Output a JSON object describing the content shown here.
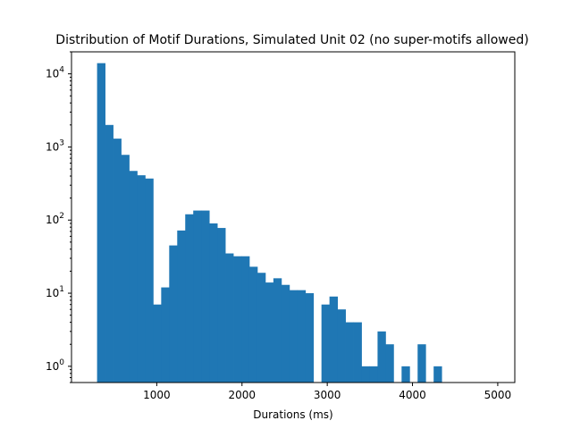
{
  "chart_data": {
    "type": "bar",
    "title": "Distribution of Motif Durations, Simulated Unit 02 (no super-motifs allowed)",
    "xlabel": "Durations (ms)",
    "ylabel": "",
    "xlim": [
      0,
      5200
    ],
    "ylim": [
      0.6,
      20000
    ],
    "yscale": "log",
    "grid": false,
    "legend": "none",
    "bar_color": "#1f77b4",
    "x_ticks": [
      1000,
      2000,
      3000,
      4000,
      5000
    ],
    "x_tick_labels": [
      "1000",
      "2000",
      "3000",
      "4000",
      "5000"
    ],
    "y_ticks": [
      1,
      10,
      100,
      1000,
      10000
    ],
    "y_tick_labels": [
      {
        "base": "10",
        "exp": "0"
      },
      {
        "base": "10",
        "exp": "1"
      },
      {
        "base": "10",
        "exp": "2"
      },
      {
        "base": "10",
        "exp": "3"
      },
      {
        "base": "10",
        "exp": "4"
      }
    ],
    "bin_edges": [
      300,
      394,
      488,
      582,
      676,
      770,
      864,
      958,
      1052,
      1146,
      1240,
      1334,
      1428,
      1522,
      1616,
      1710,
      1804,
      1898,
      1992,
      2086,
      2180,
      2274,
      2368,
      2462,
      2556,
      2650,
      2744,
      2838,
      2932,
      3026,
      3120,
      3214,
      3308,
      3402,
      3496,
      3590,
      3684,
      3778,
      3872,
      3966,
      4060,
      4154,
      4248,
      4342,
      4436,
      4530,
      4624,
      4718,
      4812,
      4906,
      5000
    ],
    "counts": [
      14000,
      2000,
      1300,
      780,
      470,
      410,
      370,
      7,
      12,
      45,
      72,
      120,
      135,
      135,
      90,
      78,
      35,
      32,
      32,
      23,
      19,
      14,
      16,
      13,
      11,
      11,
      10,
      0,
      7,
      9,
      6,
      4,
      4,
      1,
      1,
      3,
      2,
      0,
      1,
      0,
      2,
      0,
      1,
      0,
      0,
      0,
      0,
      0,
      0,
      0
    ]
  }
}
